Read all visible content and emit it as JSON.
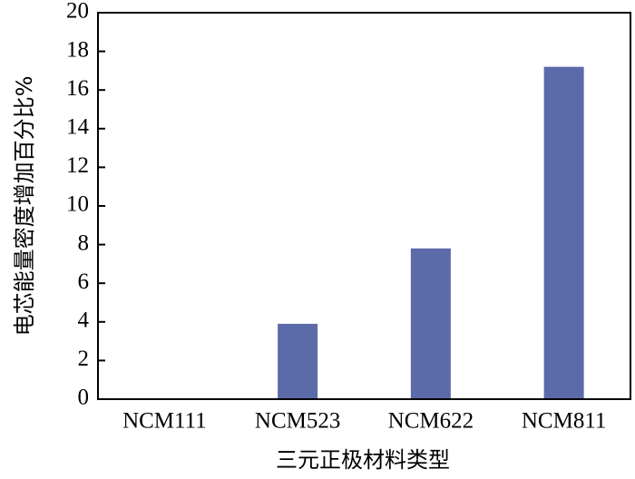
{
  "chart_data": {
    "type": "bar",
    "x_label": "三元正极材料类型",
    "y_label": "电芯能量密度增加百分比%",
    "categories": [
      "NCM111",
      "NCM523",
      "NCM622",
      "NCM811"
    ],
    "values": [
      0,
      3.9,
      7.8,
      17.2
    ],
    "color": "#5b6aa8",
    "ylim": [
      0,
      20
    ],
    "yticks": [
      0,
      2,
      4,
      6,
      8,
      10,
      12,
      14,
      16,
      18,
      20
    ],
    "grid": false
  }
}
